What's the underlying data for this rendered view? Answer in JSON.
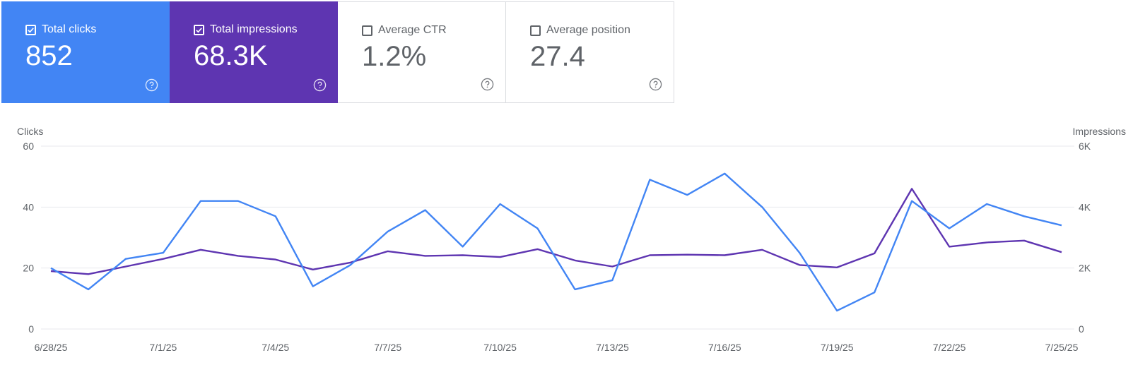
{
  "scorecards": [
    {
      "label": "Total clicks",
      "value": "852",
      "checked": true,
      "color": "#4285f4"
    },
    {
      "label": "Total impressions",
      "value": "68.3K",
      "checked": true,
      "color": "#5e35b1"
    },
    {
      "label": "Average CTR",
      "value": "1.2%",
      "checked": false,
      "color": "#ffffff"
    },
    {
      "label": "Average position",
      "value": "27.4",
      "checked": false,
      "color": "#ffffff"
    }
  ],
  "chart_data": {
    "type": "line",
    "xlabel": "",
    "y_left_label": "Clicks",
    "y_right_label": "Impressions",
    "y_left_ticks": [
      "60",
      "40",
      "20",
      "0"
    ],
    "y_right_ticks": [
      "6K",
      "4K",
      "2K",
      "0"
    ],
    "ylim_left": [
      0,
      60
    ],
    "ylim_right": [
      0,
      6000
    ],
    "grid": true,
    "x": [
      "6/28/25",
      "6/29/25",
      "6/30/25",
      "7/1/25",
      "7/2/25",
      "7/3/25",
      "7/4/25",
      "7/5/25",
      "7/6/25",
      "7/7/25",
      "7/8/25",
      "7/9/25",
      "7/10/25",
      "7/11/25",
      "7/12/25",
      "7/13/25",
      "7/14/25",
      "7/15/25",
      "7/16/25",
      "7/17/25",
      "7/18/25",
      "7/19/25",
      "7/20/25",
      "7/21/25",
      "7/22/25",
      "7/23/25",
      "7/24/25",
      "7/25/25"
    ],
    "x_tick_labels": [
      "6/28/25",
      "7/1/25",
      "7/4/25",
      "7/7/25",
      "7/10/25",
      "7/13/25",
      "7/16/25",
      "7/19/25",
      "7/22/25",
      "7/25/25"
    ],
    "series": [
      {
        "name": "Clicks",
        "axis": "left",
        "color": "#4285f4",
        "values": [
          20,
          13,
          23,
          25,
          42,
          42,
          37,
          14,
          21,
          32,
          39,
          27,
          41,
          33,
          13,
          16,
          49,
          44,
          51,
          40,
          25,
          6,
          12,
          42,
          33,
          41,
          37,
          34
        ]
      },
      {
        "name": "Impressions",
        "axis": "right",
        "color": "#5e35b1",
        "values": [
          1900,
          1800,
          2050,
          2300,
          2600,
          2400,
          2280,
          1950,
          2180,
          2550,
          2400,
          2420,
          2360,
          2620,
          2250,
          2050,
          2420,
          2440,
          2420,
          2600,
          2100,
          2020,
          2480,
          4600,
          2700,
          2840,
          2900,
          2520
        ]
      }
    ]
  }
}
